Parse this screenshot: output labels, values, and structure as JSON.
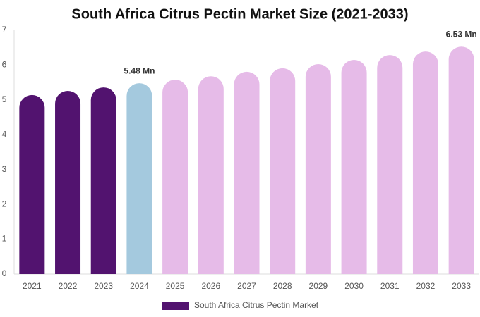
{
  "chart_data": {
    "type": "bar",
    "title": "South Africa Citrus Pectin Market Size (2021-2033)",
    "categories": [
      "2021",
      "2022",
      "2023",
      "2024",
      "2025",
      "2026",
      "2027",
      "2028",
      "2029",
      "2030",
      "2031",
      "2032",
      "2033"
    ],
    "series": [
      {
        "name": "South Africa Citrus Pectin Market",
        "color": "#52136f",
        "colors": [
          "#52136f",
          "#52136f",
          "#52136f",
          "#a4c9de",
          "#e6bbe8",
          "#e6bbe8",
          "#e6bbe8",
          "#e6bbe8",
          "#e6bbe8",
          "#e6bbe8",
          "#e6bbe8",
          "#e6bbe8",
          "#e6bbe8"
        ],
        "values": [
          5.14,
          5.26,
          5.36,
          5.48,
          5.58,
          5.68,
          5.81,
          5.91,
          6.03,
          6.15,
          6.29,
          6.39,
          6.53
        ],
        "value_labels": [
          null,
          null,
          null,
          "5.48 Mn",
          null,
          null,
          null,
          null,
          null,
          null,
          null,
          null,
          "6.53 Mn"
        ]
      }
    ],
    "ylim": [
      0,
      7
    ],
    "yticks": [
      0,
      1,
      2,
      3,
      4,
      5,
      6,
      7
    ],
    "grid": false,
    "legend": "bottom"
  }
}
